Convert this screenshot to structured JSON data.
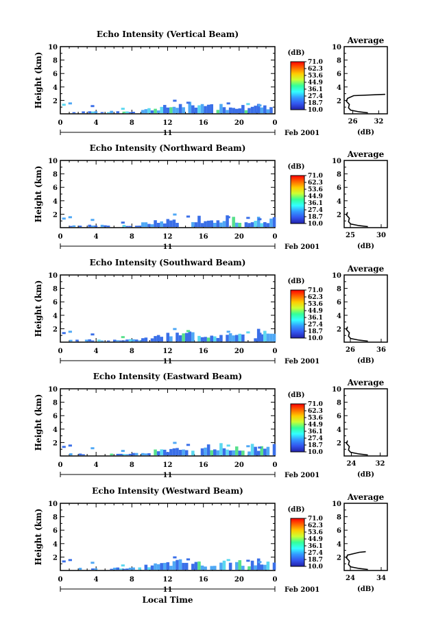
{
  "xaxis_label": "Local Time",
  "date_label": "Feb 2001",
  "day_label": "11",
  "ylabel": "Height (km)",
  "colorbar_unit": "(dB)",
  "colorbar_ticks": [
    "71.0",
    "62.3",
    "53.6",
    "44.9",
    "36.1",
    "27.4",
    "18.7",
    "10.0"
  ],
  "colors": {
    "low": "#3344cc",
    "mid": "#33bbff",
    "high": "#33cc66",
    "top": "#ff3300"
  },
  "chart_data": [
    {
      "type": "heatmap",
      "title": "Echo Intensity (Vertical Beam)",
      "xlabel": "Local Time",
      "ylabel": "Height (km)",
      "x_ticks": [
        "0",
        "4",
        "8",
        "12",
        "16",
        "20",
        "0"
      ],
      "y_ticks": [
        "2",
        "4",
        "6",
        "8",
        "10"
      ],
      "xlim": [
        0,
        24
      ],
      "ylim": [
        0,
        10
      ],
      "average_panel": {
        "title": "Average",
        "xlabel": "(dB)",
        "x_ticks": [
          "26",
          "32"
        ],
        "xlim": [
          24,
          34
        ],
        "y_ticks": [
          "2",
          "4",
          "6",
          "8",
          "10"
        ]
      }
    },
    {
      "type": "heatmap",
      "title": "Echo Intensity (Northward Beam)",
      "xlabel": "Local Time",
      "ylabel": "Height (km)",
      "x_ticks": [
        "0",
        "4",
        "8",
        "12",
        "16",
        "20",
        "0"
      ],
      "y_ticks": [
        "2",
        "4",
        "6",
        "8",
        "10"
      ],
      "xlim": [
        0,
        24
      ],
      "ylim": [
        0,
        10
      ],
      "average_panel": {
        "title": "Average",
        "xlabel": "(dB)",
        "x_ticks": [
          "25",
          "30"
        ],
        "xlim": [
          24,
          31
        ],
        "y_ticks": [
          "2",
          "4",
          "6",
          "8",
          "10"
        ]
      }
    },
    {
      "type": "heatmap",
      "title": "Echo Intensity (Southward Beam)",
      "xlabel": "Local Time",
      "ylabel": "Height (km)",
      "x_ticks": [
        "0",
        "4",
        "8",
        "12",
        "16",
        "20",
        "0"
      ],
      "y_ticks": [
        "2",
        "4",
        "6",
        "8",
        "10"
      ],
      "xlim": [
        0,
        24
      ],
      "ylim": [
        0,
        10
      ],
      "average_panel": {
        "title": "Average",
        "xlabel": "(dB)",
        "x_ticks": [
          "26",
          "36"
        ],
        "xlim": [
          24,
          38
        ],
        "y_ticks": [
          "2",
          "4",
          "6",
          "8",
          "10"
        ]
      }
    },
    {
      "type": "heatmap",
      "title": "Echo Intensity (Eastward Beam)",
      "xlabel": "Local Time",
      "ylabel": "Height (km)",
      "x_ticks": [
        "0",
        "4",
        "8",
        "12",
        "16",
        "20",
        "0"
      ],
      "y_ticks": [
        "2",
        "4",
        "6",
        "8",
        "10"
      ],
      "xlim": [
        0,
        24
      ],
      "ylim": [
        0,
        10
      ],
      "average_panel": {
        "title": "Average",
        "xlabel": "(dB)",
        "x_ticks": [
          "24",
          "32"
        ],
        "xlim": [
          22,
          34
        ],
        "y_ticks": [
          "2",
          "4",
          "6",
          "8",
          "10"
        ]
      }
    },
    {
      "type": "heatmap",
      "title": "Echo Intensity (Westward Beam)",
      "xlabel": "Local Time",
      "ylabel": "Height (km)",
      "x_ticks": [
        "0",
        "4",
        "8",
        "12",
        "16",
        "20",
        "0"
      ],
      "y_ticks": [
        "2",
        "4",
        "6",
        "8",
        "10"
      ],
      "xlim": [
        0,
        24
      ],
      "ylim": [
        0,
        10
      ],
      "average_panel": {
        "title": "Average",
        "xlabel": "(dB)",
        "x_ticks": [
          "24",
          "34"
        ],
        "xlim": [
          22,
          36
        ],
        "y_ticks": [
          "2",
          "4",
          "6",
          "8",
          "10"
        ]
      }
    }
  ]
}
